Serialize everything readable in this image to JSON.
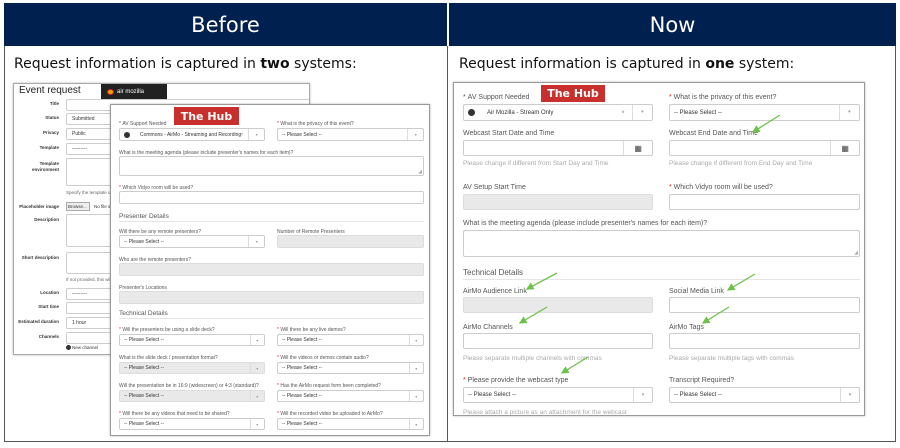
{
  "header": {
    "before": "Before",
    "now": "Now"
  },
  "colors": {
    "header_bg": "#002050",
    "hub_badge": "#c8302e",
    "arrow": "#6cc24a",
    "required": "#dd2222"
  },
  "before": {
    "intro": {
      "pre": "Request information is captured in ",
      "bold": "two",
      "post": " systems:"
    },
    "airmozilla": {
      "logo_text": "air mozilla",
      "title": "Event request",
      "rows": [
        {
          "label": "Title",
          "value": ""
        },
        {
          "label": "Status",
          "value": "Submitted"
        },
        {
          "label": "Privacy",
          "value": "Public"
        },
        {
          "label": "Template",
          "value": "---------"
        },
        {
          "label": "Template environment",
          "value": ""
        },
        {
          "label": "Placeholder image",
          "value": ""
        },
        {
          "label": "Description",
          "value": ""
        },
        {
          "label": "Short description",
          "value": ""
        },
        {
          "label": "Location",
          "value": "---------"
        },
        {
          "label": "Start time",
          "value": ""
        },
        {
          "label": "Estimated duration",
          "value": "1 hour"
        },
        {
          "label": "Channels",
          "value": ""
        }
      ],
      "template_hint": "Specify the template u",
      "browse": "Browse...",
      "no_file": "No file s",
      "short_hint": "If not provided, this will",
      "new_channel": "New channel"
    },
    "hub": {
      "badge": "The Hub",
      "av_support": {
        "label": "AV Support Needed",
        "value": "Commons - AirMo - Streaming and Recording"
      },
      "privacy": {
        "label": "What is the privacy of this event?",
        "value": "-- Please Select --"
      },
      "agenda": {
        "label": "What is the meeting agenda (please include presenter's names for each item)?"
      },
      "vidyo": {
        "label": "Which Vidyo room will be used?"
      },
      "presenter_heading": "Presenter Details",
      "remote": {
        "label": "Will there be any remote presenters?",
        "value": "-- Please Select --"
      },
      "remote_count": {
        "label": "Number of Remote Presenters"
      },
      "who": {
        "label": "Who are the remote presenters?"
      },
      "locations": {
        "label": "Presenter's Locations"
      },
      "technical_heading": "Technical Details",
      "tech_fields": [
        {
          "label": "Will the presenters be using a slide deck?",
          "required": true,
          "value": "-- Please Select --",
          "disabled": false
        },
        {
          "label": "Will there be any live demos?",
          "required": true,
          "value": "-- Please Select --",
          "disabled": false
        },
        {
          "label": "What is the slide deck / presentation format?",
          "required": false,
          "value": "-- Please Select --",
          "disabled": true
        },
        {
          "label": "Will the videos or demos contain audio?",
          "required": true,
          "value": "-- Please Select --",
          "disabled": false
        },
        {
          "label": "Will the presentation be in 16:9 (widescreen) or 4:3 (standard)?",
          "required": false,
          "value": "-- Please Select --",
          "disabled": true
        },
        {
          "label": "Has the AirMo request form been completed?",
          "required": true,
          "value": "-- Please Select --",
          "disabled": false
        },
        {
          "label": "Will there be any videos that need to be shared?",
          "required": true,
          "value": "-- Please Select --",
          "disabled": false
        },
        {
          "label": "Will the recorded video be uploaded to AirMo?",
          "required": true,
          "value": "-- Please Select --",
          "disabled": false
        }
      ]
    }
  },
  "now": {
    "intro": {
      "pre": "Request information is captured in ",
      "bold": "one",
      "post": " system:"
    },
    "hub": {
      "badge": "The Hub",
      "av_support": {
        "label": "AV Support Needed",
        "value": "Air Mozilla - Stream Only"
      },
      "privacy": {
        "label": "What is the privacy of this event?",
        "value": "-- Please Select --"
      },
      "start": {
        "label": "Webcast Start Date and Time",
        "hint": "Please change if different from Start Day and Time"
      },
      "end": {
        "label": "Webcast End Date and Time",
        "hint": "Please change if different from End Day and Time"
      },
      "setup": {
        "label": "AV Setup Start Time"
      },
      "vidyo": {
        "label": "Which Vidyo room will be used?"
      },
      "agenda": {
        "label": "What is the meeting agenda (please include presenter's names for each item)?"
      },
      "technical_heading": "Technical Details",
      "audience": {
        "label": "AirMo Audience Link"
      },
      "social": {
        "label": "Social Media Link"
      },
      "channels": {
        "label": "AirMo Channels",
        "hint": "Please separate multiple channels with commas"
      },
      "tags": {
        "label": "AirMo Tags",
        "hint": "Please separate multiple tags with commas"
      },
      "webcast_type": {
        "label": "Please provide the webcast type",
        "value": "-- Please Select --",
        "hint": "Please attach a picture as an attachment for the webcast"
      },
      "transcript": {
        "label": "Transcript Required?",
        "value": "-- Please Select --"
      }
    }
  }
}
